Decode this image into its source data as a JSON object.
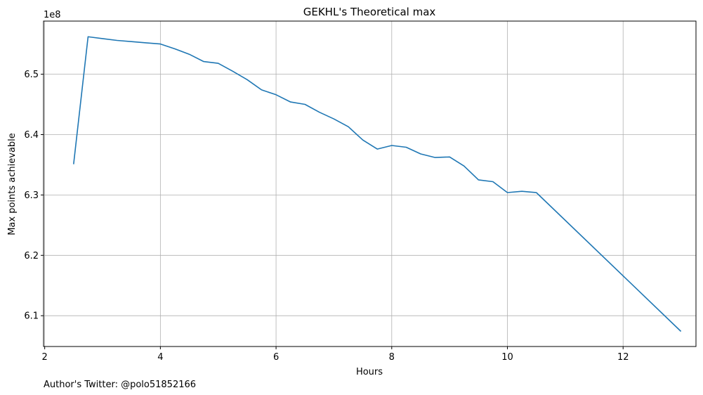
{
  "chart_data": {
    "type": "line",
    "title": "GEKHL's Theoretical max",
    "xlabel": "Hours",
    "ylabel": "Max points achievable",
    "y_offset_label": "1e8",
    "xlim": [
      1.98,
      13.26
    ],
    "ylim": [
      6.049,
      6.588
    ],
    "xticks": [
      2,
      4,
      6,
      8,
      10,
      12
    ],
    "yticks": [
      6.1,
      6.2,
      6.3,
      6.4,
      6.5
    ],
    "xtick_labels": [
      "2",
      "4",
      "6",
      "8",
      "10",
      "12"
    ],
    "ytick_labels": [
      "6.1",
      "6.2",
      "6.3",
      "6.4",
      "6.5"
    ],
    "grid": true,
    "series": [
      {
        "color": "#1f77b4",
        "x": [
          2.5,
          2.75,
          3.0,
          3.25,
          3.5,
          3.75,
          4.0,
          4.25,
          4.5,
          4.75,
          5.0,
          5.25,
          5.5,
          5.75,
          6.0,
          6.25,
          6.5,
          6.75,
          7.0,
          7.25,
          7.5,
          7.75,
          8.0,
          8.25,
          8.5,
          8.75,
          9.0,
          9.25,
          9.5,
          9.75,
          10.0,
          10.25,
          10.5,
          13.0
        ],
        "values": [
          6.351,
          6.562,
          6.559,
          6.556,
          6.554,
          6.552,
          6.55,
          6.542,
          6.533,
          6.521,
          6.518,
          6.505,
          6.491,
          6.474,
          6.466,
          6.454,
          6.45,
          6.437,
          6.426,
          6.413,
          6.391,
          6.376,
          6.382,
          6.379,
          6.368,
          6.362,
          6.363,
          6.348,
          6.325,
          6.322,
          6.304,
          6.306,
          6.304,
          6.074
        ]
      }
    ]
  },
  "footer": {
    "author_note": "Author's Twitter: @polo51852166"
  }
}
